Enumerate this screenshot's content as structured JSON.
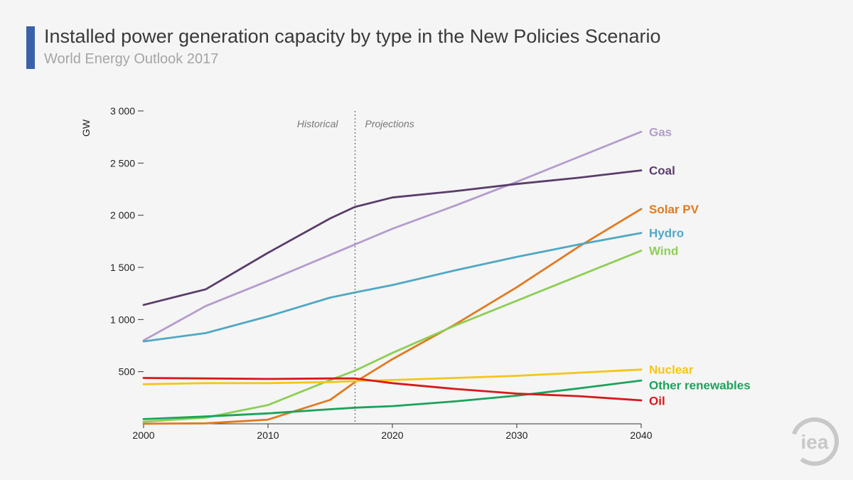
{
  "title": "Installed power generation capacity by type in the New Policies Scenario",
  "subtitle": "World Energy Outlook 2017",
  "logo_text": "iea",
  "colors": {
    "accent": "#3a62a8",
    "logo": "#c8c8c8"
  },
  "chart_data": {
    "type": "line",
    "ylabel": "GW",
    "xlim": [
      2000,
      2040
    ],
    "ylim": [
      0,
      3000
    ],
    "x_ticks": [
      2000,
      2010,
      2020,
      2030,
      2040
    ],
    "x_tick_labels": [
      "2000",
      "2010",
      "2020",
      "2030",
      "2040"
    ],
    "y_ticks": [
      500,
      1000,
      1500,
      2000,
      2500,
      3000
    ],
    "y_tick_labels": [
      "500",
      "1 000",
      "1 500",
      "2 000",
      "2 500",
      "3 000"
    ],
    "divider_x": 2017,
    "region_labels": {
      "left": "Historical",
      "right": "Projections"
    },
    "x": [
      2000,
      2005,
      2010,
      2015,
      2017,
      2020,
      2025,
      2030,
      2035,
      2040
    ],
    "series": [
      {
        "name": "Gas",
        "color": "#b39dcc",
        "values": [
          800,
          1130,
          1370,
          1620,
          1720,
          1870,
          2090,
          2320,
          2560,
          2800
        ]
      },
      {
        "name": "Coal",
        "color": "#5a3d6b",
        "values": [
          1140,
          1290,
          1640,
          1970,
          2080,
          2170,
          2230,
          2300,
          2360,
          2430
        ]
      },
      {
        "name": "Solar PV",
        "color": "#e07a22",
        "values": [
          1,
          5,
          40,
          230,
          400,
          620,
          950,
          1310,
          1700,
          2060
        ]
      },
      {
        "name": "Hydro",
        "color": "#4fa8c4",
        "values": [
          790,
          870,
          1030,
          1210,
          1260,
          1330,
          1470,
          1600,
          1720,
          1830
        ]
      },
      {
        "name": "Wind",
        "color": "#8dcf55",
        "values": [
          20,
          60,
          180,
          420,
          510,
          680,
          940,
          1180,
          1420,
          1660
        ]
      },
      {
        "name": "Nuclear",
        "color": "#f5c518",
        "values": [
          380,
          390,
          390,
          400,
          410,
          420,
          440,
          460,
          490,
          520
        ]
      },
      {
        "name": "Other renewables",
        "color": "#1aa35b",
        "values": [
          45,
          70,
          100,
          140,
          155,
          170,
          215,
          270,
          340,
          415
        ]
      },
      {
        "name": "Oil",
        "color": "#d7191c",
        "values": [
          440,
          435,
          430,
          435,
          435,
          390,
          335,
          290,
          265,
          225
        ]
      }
    ]
  }
}
